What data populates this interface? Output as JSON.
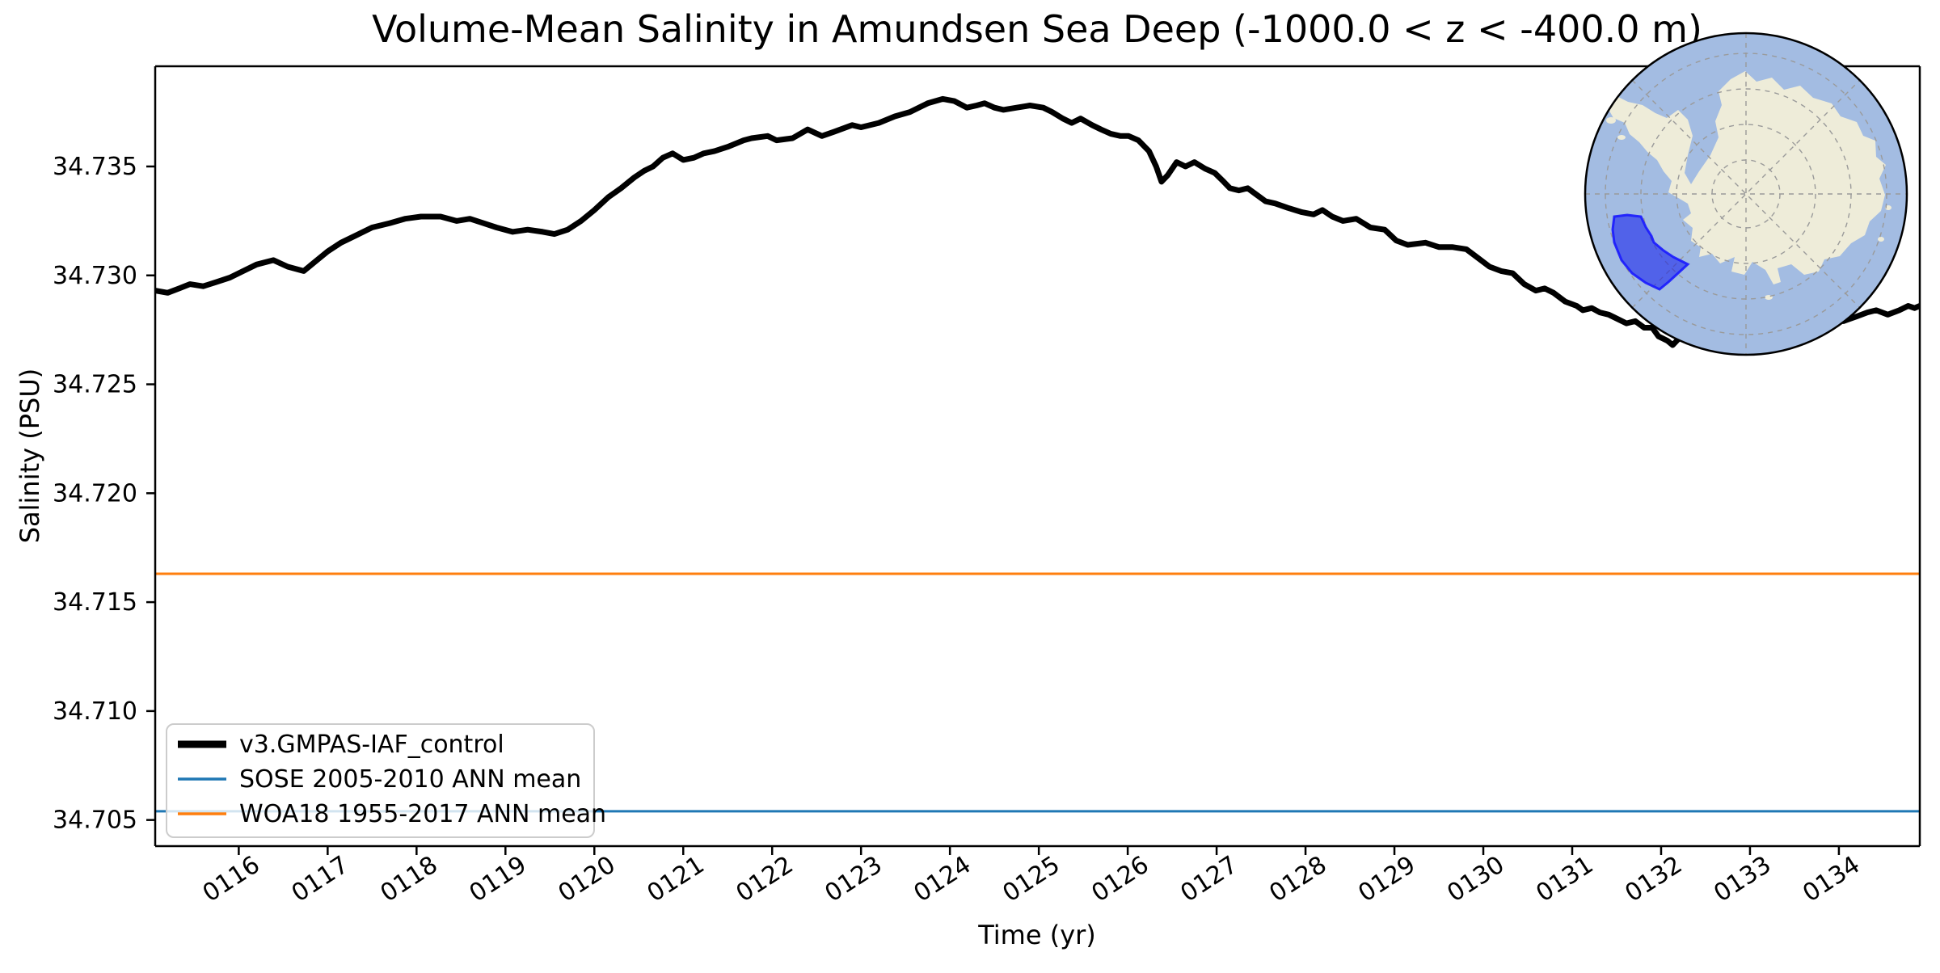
{
  "title": "Volume-Mean Salinity in Amundsen Sea Deep (-1000.0 < z < -400.0 m)",
  "axes": {
    "xlabel": "Time (yr)",
    "ylabel": "Salinity (PSU)"
  },
  "legend": {
    "position": "lower left"
  },
  "inset_map": {
    "name": "antarctica-south-polar-inset",
    "highlighted_region": "Amundsen Sea sector",
    "colors": {
      "ocean": "#a3bce2",
      "land": "#eeecd9",
      "graticule": "#9a9a9a",
      "region_fill": "#0008f0",
      "region_stroke": "#1a1aff",
      "outline": "#000000"
    }
  },
  "chart_data": {
    "type": "line",
    "title": "Volume-Mean Salinity in Amundsen Sea Deep (-1000.0 < z < -400.0 m)",
    "xlabel": "Time (yr)",
    "ylabel": "Salinity (PSU)",
    "xlim": [
      115.06,
      134.91
    ],
    "ylim": [
      34.7038,
      34.7396
    ],
    "grid": false,
    "legend_position": "lower left",
    "xticks": {
      "values": [
        116,
        117,
        118,
        119,
        120,
        121,
        122,
        123,
        124,
        125,
        126,
        127,
        128,
        129,
        130,
        131,
        132,
        133,
        134
      ],
      "labels": [
        "0116",
        "0117",
        "0118",
        "0119",
        "0120",
        "0121",
        "0122",
        "0123",
        "0124",
        "0125",
        "0126",
        "0127",
        "0128",
        "0129",
        "0130",
        "0131",
        "0132",
        "0133",
        "0134"
      ],
      "rotation": -33
    },
    "yticks": {
      "values": [
        34.705,
        34.71,
        34.715,
        34.72,
        34.725,
        34.73,
        34.735
      ],
      "labels": [
        "34.705",
        "34.710",
        "34.715",
        "34.720",
        "34.725",
        "34.730",
        "34.735"
      ]
    },
    "series": [
      {
        "name": "v3.GMPAS-IAF_control",
        "type": "line",
        "color": "#000000",
        "linewidth": 7,
        "points": [
          [
            115.06,
            34.7293
          ],
          [
            115.2,
            34.7292
          ],
          [
            115.33,
            34.7294
          ],
          [
            115.45,
            34.7296
          ],
          [
            115.6,
            34.7295
          ],
          [
            115.75,
            34.7297
          ],
          [
            115.9,
            34.7299
          ],
          [
            116.05,
            34.7302
          ],
          [
            116.2,
            34.7305
          ],
          [
            116.39,
            34.7307
          ],
          [
            116.55,
            34.7304
          ],
          [
            116.73,
            34.7302
          ],
          [
            116.85,
            34.7306
          ],
          [
            117.0,
            34.7311
          ],
          [
            117.15,
            34.7315
          ],
          [
            117.3,
            34.7318
          ],
          [
            117.5,
            34.7322
          ],
          [
            117.7,
            34.7324
          ],
          [
            117.87,
            34.7326
          ],
          [
            118.05,
            34.7327
          ],
          [
            118.27,
            34.7327
          ],
          [
            118.45,
            34.7325
          ],
          [
            118.6,
            34.7326
          ],
          [
            118.75,
            34.7324
          ],
          [
            118.9,
            34.7322
          ],
          [
            119.08,
            34.732
          ],
          [
            119.25,
            34.7321
          ],
          [
            119.42,
            34.732
          ],
          [
            119.55,
            34.7319
          ],
          [
            119.7,
            34.7321
          ],
          [
            119.85,
            34.7325
          ],
          [
            120.0,
            34.733
          ],
          [
            120.16,
            34.7336
          ],
          [
            120.3,
            34.734
          ],
          [
            120.45,
            34.7345
          ],
          [
            120.56,
            34.7348
          ],
          [
            120.66,
            34.735
          ],
          [
            120.77,
            34.7354
          ],
          [
            120.88,
            34.7356
          ],
          [
            121.0,
            34.7353
          ],
          [
            121.12,
            34.7354
          ],
          [
            121.23,
            34.7356
          ],
          [
            121.35,
            34.7357
          ],
          [
            121.5,
            34.7359
          ],
          [
            121.68,
            34.7362
          ],
          [
            121.77,
            34.7363
          ],
          [
            121.95,
            34.7364
          ],
          [
            122.05,
            34.7362
          ],
          [
            122.23,
            34.7363
          ],
          [
            122.4,
            34.7367
          ],
          [
            122.56,
            34.7364
          ],
          [
            122.7,
            34.7366
          ],
          [
            122.9,
            34.7369
          ],
          [
            123.0,
            34.7368
          ],
          [
            123.2,
            34.737
          ],
          [
            123.38,
            34.7373
          ],
          [
            123.55,
            34.7375
          ],
          [
            123.75,
            34.7379
          ],
          [
            123.92,
            34.7381
          ],
          [
            124.05,
            34.738
          ],
          [
            124.19,
            34.7377
          ],
          [
            124.3,
            34.7378
          ],
          [
            124.39,
            34.7379
          ],
          [
            124.5,
            34.7377
          ],
          [
            124.6,
            34.7376
          ],
          [
            124.75,
            34.7377
          ],
          [
            124.9,
            34.7378
          ],
          [
            125.05,
            34.7377
          ],
          [
            125.15,
            34.7375
          ],
          [
            125.27,
            34.7372
          ],
          [
            125.37,
            34.737
          ],
          [
            125.47,
            34.7372
          ],
          [
            125.6,
            34.7369
          ],
          [
            125.7,
            34.7367
          ],
          [
            125.81,
            34.7365
          ],
          [
            125.92,
            34.7364
          ],
          [
            126.01,
            34.7364
          ],
          [
            126.12,
            34.7362
          ],
          [
            126.24,
            34.7357
          ],
          [
            126.32,
            34.735
          ],
          [
            126.38,
            34.7343
          ],
          [
            126.45,
            34.7346
          ],
          [
            126.55,
            34.7352
          ],
          [
            126.65,
            34.735
          ],
          [
            126.75,
            34.7352
          ],
          [
            126.87,
            34.7349
          ],
          [
            126.98,
            34.7347
          ],
          [
            127.08,
            34.7343
          ],
          [
            127.15,
            34.734
          ],
          [
            127.25,
            34.7339
          ],
          [
            127.35,
            34.734
          ],
          [
            127.45,
            34.7337
          ],
          [
            127.55,
            34.7334
          ],
          [
            127.66,
            34.7333
          ],
          [
            127.8,
            34.7331
          ],
          [
            127.96,
            34.7329
          ],
          [
            128.09,
            34.7328
          ],
          [
            128.19,
            34.733
          ],
          [
            128.3,
            34.7327
          ],
          [
            128.42,
            34.7325
          ],
          [
            128.57,
            34.7326
          ],
          [
            128.73,
            34.7322
          ],
          [
            128.89,
            34.7321
          ],
          [
            129.02,
            34.7316
          ],
          [
            129.15,
            34.7314
          ],
          [
            129.35,
            34.7315
          ],
          [
            129.5,
            34.7313
          ],
          [
            129.65,
            34.7313
          ],
          [
            129.81,
            34.7312
          ],
          [
            129.94,
            34.7308
          ],
          [
            130.07,
            34.7304
          ],
          [
            130.2,
            34.7302
          ],
          [
            130.33,
            34.7301
          ],
          [
            130.46,
            34.7296
          ],
          [
            130.59,
            34.7293
          ],
          [
            130.69,
            34.7294
          ],
          [
            130.79,
            34.7292
          ],
          [
            130.92,
            34.7288
          ],
          [
            131.05,
            34.7286
          ],
          [
            131.12,
            34.7284
          ],
          [
            131.22,
            34.7285
          ],
          [
            131.31,
            34.7283
          ],
          [
            131.41,
            34.7282
          ],
          [
            131.51,
            34.728
          ],
          [
            131.61,
            34.7278
          ],
          [
            131.71,
            34.7279
          ],
          [
            131.81,
            34.7276
          ],
          [
            131.9,
            34.7276
          ],
          [
            131.97,
            34.7272
          ],
          [
            132.07,
            34.727
          ],
          [
            132.13,
            34.7268
          ],
          [
            132.2,
            34.7271
          ],
          [
            132.35,
            34.7274
          ],
          [
            132.5,
            34.7276
          ],
          [
            132.7,
            34.7275
          ],
          [
            132.9,
            34.7276
          ],
          [
            133.1,
            34.7277
          ],
          [
            133.3,
            34.7277
          ],
          [
            133.5,
            34.7278
          ],
          [
            133.7,
            34.7279
          ],
          [
            133.9,
            34.728
          ],
          [
            134.05,
            34.7279
          ],
          [
            134.19,
            34.7281
          ],
          [
            134.32,
            34.7283
          ],
          [
            134.42,
            34.7284
          ],
          [
            134.55,
            34.7282
          ],
          [
            134.68,
            34.7284
          ],
          [
            134.78,
            34.7286
          ],
          [
            134.85,
            34.7285
          ],
          [
            134.91,
            34.7286
          ]
        ]
      },
      {
        "name": "SOSE 2005-2010 ANN mean",
        "type": "hline",
        "color": "#1f77b4",
        "linewidth": 3,
        "value": 34.7054
      },
      {
        "name": "WOA18 1955-2017 ANN mean",
        "type": "hline",
        "color": "#ff7f0e",
        "linewidth": 3,
        "value": 34.7163
      }
    ]
  }
}
